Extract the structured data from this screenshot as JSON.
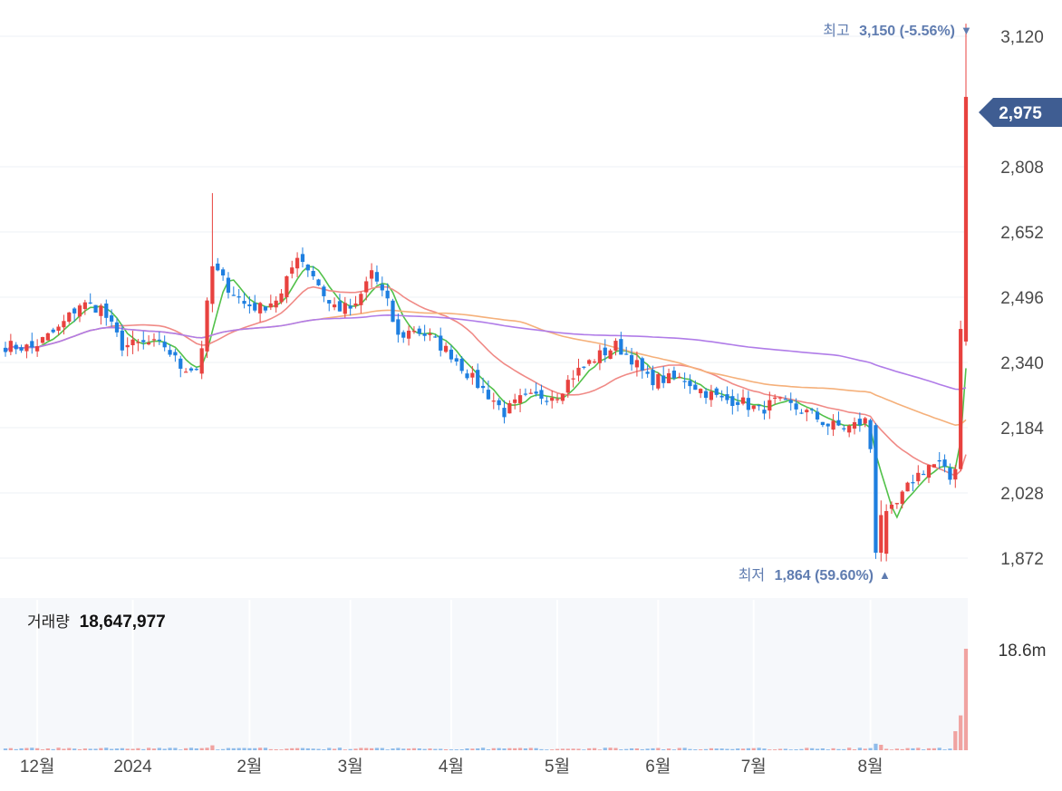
{
  "colors": {
    "up": "#e8423f",
    "down": "#1e7fe0",
    "ma5": "#52c14a",
    "ma20": "#f08a86",
    "ma60": "#f5b07a",
    "ma120": "#b07ce8",
    "annotation": "#5f7cb0",
    "price_tag_bg": "#3f5d92",
    "grid": "#eef1f5",
    "axis_text": "#4a4a4a",
    "volume_bg": "#f6f8fb"
  },
  "annotations": {
    "high_label": "최고",
    "high_value": "3,150 (-5.56%)",
    "high_arrow": "▼",
    "low_label": "최저",
    "low_value": "1,864 (59.60%)",
    "low_arrow": "▲",
    "current_price": "2,975"
  },
  "volume": {
    "label": "거래량",
    "value": "18,647,977",
    "axis_label": "18.6m"
  },
  "chart_data": {
    "type": "candlestick",
    "title": "",
    "xlabel": "",
    "ylabel": "",
    "x_ticks": [
      {
        "label": "12월",
        "index": 6
      },
      {
        "label": "2024",
        "index": 24
      },
      {
        "label": "2월",
        "index": 46
      },
      {
        "label": "3월",
        "index": 65
      },
      {
        "label": "4월",
        "index": 84
      },
      {
        "label": "5월",
        "index": 104
      },
      {
        "label": "6월",
        "index": 123
      },
      {
        "label": "7월",
        "index": 141
      },
      {
        "label": "8월",
        "index": 163
      }
    ],
    "y_ticks": [
      1872,
      2028,
      2184,
      2340,
      2496,
      2652,
      2808,
      3120
    ],
    "ylim": [
      1820,
      3185
    ],
    "volume_max": 18647977,
    "price_waypoints": [
      [
        0,
        2380
      ],
      [
        5,
        2375
      ],
      [
        10,
        2420
      ],
      [
        14,
        2480
      ],
      [
        18,
        2470
      ],
      [
        22,
        2380
      ],
      [
        27,
        2385
      ],
      [
        30,
        2380
      ],
      [
        33,
        2330
      ],
      [
        36,
        2325
      ],
      [
        37,
        2380
      ],
      [
        39,
        2570
      ],
      [
        42,
        2520
      ],
      [
        45,
        2480
      ],
      [
        48,
        2470
      ],
      [
        52,
        2500
      ],
      [
        55,
        2600
      ],
      [
        58,
        2550
      ],
      [
        61,
        2480
      ],
      [
        63,
        2470
      ],
      [
        66,
        2470
      ],
      [
        69,
        2560
      ],
      [
        72,
        2480
      ],
      [
        74,
        2400
      ],
      [
        77,
        2420
      ],
      [
        80,
        2400
      ],
      [
        84,
        2360
      ],
      [
        88,
        2300
      ],
      [
        92,
        2250
      ],
      [
        94,
        2220
      ],
      [
        97,
        2250
      ],
      [
        101,
        2260
      ],
      [
        104,
        2265
      ],
      [
        107,
        2310
      ],
      [
        111,
        2350
      ],
      [
        115,
        2380
      ],
      [
        118,
        2350
      ],
      [
        121,
        2300
      ],
      [
        124,
        2300
      ],
      [
        128,
        2300
      ],
      [
        131,
        2275
      ],
      [
        135,
        2250
      ],
      [
        138,
        2250
      ],
      [
        142,
        2225
      ],
      [
        145,
        2245
      ],
      [
        148,
        2235
      ],
      [
        152,
        2215
      ],
      [
        155,
        2190
      ],
      [
        159,
        2185
      ],
      [
        162,
        2200
      ],
      [
        164,
        2070
      ],
      [
        165,
        1885
      ],
      [
        166,
        1970
      ],
      [
        168,
        2000
      ],
      [
        171,
        2060
      ],
      [
        174,
        2095
      ],
      [
        176,
        2095
      ],
      [
        178,
        2060
      ],
      [
        179,
        2090
      ],
      [
        180,
        2400
      ],
      [
        181,
        2975
      ]
    ],
    "special_candles": [
      {
        "index": 39,
        "open": 2480,
        "high": 2745,
        "low": 2460,
        "close": 2570,
        "volume": 900000
      },
      {
        "index": 164,
        "open": 2190,
        "high": 2195,
        "low": 1870,
        "close": 1885,
        "volume": 1200000
      },
      {
        "index": 165,
        "open": 1885,
        "high": 2010,
        "low": 1864,
        "close": 1975,
        "volume": 1000000
      },
      {
        "index": 179,
        "open": 2060,
        "high": 2095,
        "low": 2040,
        "close": 2085,
        "volume": 3500000
      },
      {
        "index": 180,
        "open": 2085,
        "high": 2440,
        "low": 2080,
        "close": 2420,
        "volume": 6400000
      },
      {
        "index": 181,
        "open": 2390,
        "high": 3150,
        "low": 2380,
        "close": 2975,
        "volume": 18647977
      }
    ],
    "moving_averages": [
      {
        "period": 5,
        "color_key": "ma5"
      },
      {
        "period": 20,
        "color_key": "ma20"
      },
      {
        "period": 60,
        "color_key": "ma60"
      },
      {
        "period": 120,
        "color_key": "ma120"
      }
    ]
  }
}
